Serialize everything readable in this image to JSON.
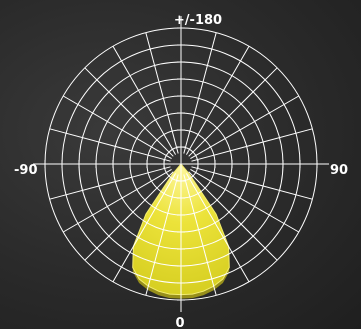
{
  "chart_data": {
    "type": "polar-area",
    "angle_labels": {
      "top": "+/-180",
      "left": "-90",
      "right": "90",
      "bottom": "0"
    },
    "angle_grid_step_deg": 15,
    "radial_rings": 8,
    "colors": {
      "background": "#2b2b2b",
      "grid": "#ffffff",
      "beam_fill": "#e3db2a",
      "beam_shadow": "#a39a1a"
    },
    "series": [
      {
        "angles_deg": [
          -40,
          -35,
          -30,
          -25,
          -20,
          -15,
          -10,
          -5,
          0,
          5,
          10,
          15,
          20,
          25,
          30,
          35,
          40
        ],
        "values": [
          0.1,
          0.45,
          0.7,
          0.84,
          0.9,
          0.93,
          0.95,
          0.96,
          0.96,
          0.96,
          0.95,
          0.93,
          0.9,
          0.84,
          0.7,
          0.45,
          0.1
        ]
      }
    ]
  }
}
